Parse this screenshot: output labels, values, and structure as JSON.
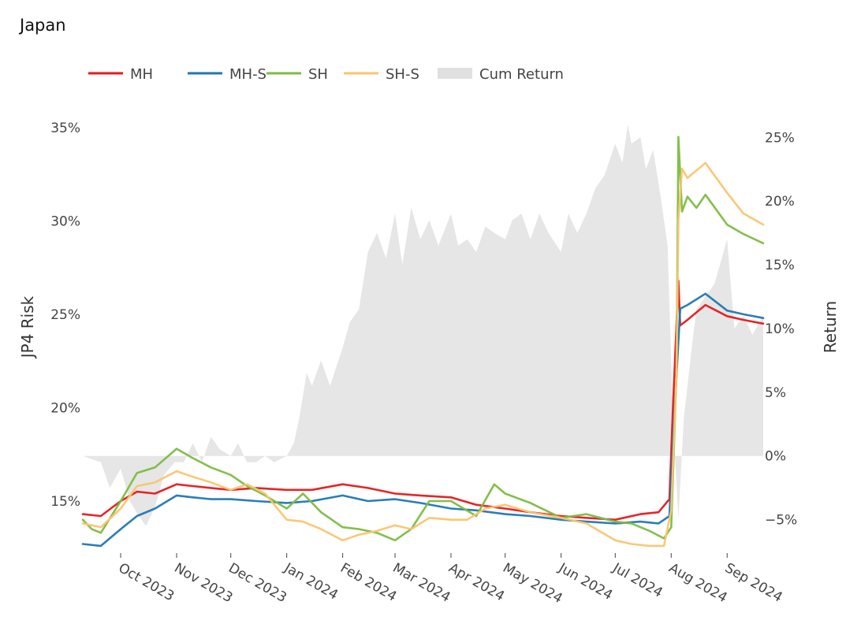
{
  "page": {
    "title": "Japan"
  },
  "chart_data": {
    "type": "line",
    "title": "Japan",
    "xlabel": "",
    "ylabel": "JP4 Risk",
    "y2label": "Return",
    "ylim": [
      12.3,
      35.5
    ],
    "y2lim": [
      -7.5,
      26.5
    ],
    "y_ticks": [
      "15%",
      "20%",
      "25%",
      "30%",
      "35%"
    ],
    "y_tick_values": [
      15,
      20,
      25,
      30,
      35
    ],
    "y2_ticks": [
      "−5%",
      "0%",
      "5%",
      "10%",
      "15%",
      "20%",
      "25%"
    ],
    "y2_tick_values": [
      -5,
      0,
      5,
      10,
      15,
      20,
      25
    ],
    "x_ticks": [
      "Oct 2023",
      "Nov 2023",
      "Dec 2023",
      "Jan 2024",
      "Feb 2024",
      "Mar 2024",
      "Apr 2024",
      "May 2024",
      "Jun 2024",
      "Jul 2024",
      "Aug 2024",
      "Sep 2024"
    ],
    "x_tick_dates": [
      "2023-10-01",
      "2023-11-01",
      "2023-12-01",
      "2024-01-01",
      "2024-02-01",
      "2024-03-01",
      "2024-04-01",
      "2024-05-01",
      "2024-06-01",
      "2024-07-01",
      "2024-08-01",
      "2024-09-01"
    ],
    "xlim": [
      "2023-09-10",
      "2024-09-21"
    ],
    "grid": false,
    "legend_position": "top-left",
    "series": [
      {
        "name": "MH",
        "color": "#e41a1c",
        "axis": "left",
        "x": [
          "2023-09-10",
          "2023-09-20",
          "2023-10-01",
          "2023-10-10",
          "2023-10-20",
          "2023-11-01",
          "2023-11-10",
          "2023-11-20",
          "2023-12-01",
          "2023-12-15",
          "2024-01-01",
          "2024-01-15",
          "2024-02-01",
          "2024-02-15",
          "2024-03-01",
          "2024-03-15",
          "2024-04-01",
          "2024-04-15",
          "2024-05-01",
          "2024-05-15",
          "2024-06-01",
          "2024-06-15",
          "2024-07-01",
          "2024-07-15",
          "2024-07-25",
          "2024-07-31",
          "2024-08-02",
          "2024-08-05",
          "2024-08-06",
          "2024-08-10",
          "2024-08-20",
          "2024-09-01",
          "2024-09-10",
          "2024-09-21"
        ],
        "y": [
          14.3,
          14.2,
          15.0,
          15.5,
          15.4,
          15.9,
          15.8,
          15.7,
          15.6,
          15.7,
          15.6,
          15.6,
          15.9,
          15.7,
          15.4,
          15.3,
          15.2,
          14.8,
          14.6,
          14.4,
          14.2,
          14.1,
          14.0,
          14.3,
          14.4,
          15.1,
          20.0,
          26.8,
          24.4,
          24.7,
          25.5,
          24.9,
          24.7,
          24.5
        ]
      },
      {
        "name": "MH-S",
        "color": "#1f77b4",
        "axis": "left",
        "x": [
          "2023-09-10",
          "2023-09-20",
          "2023-10-01",
          "2023-10-10",
          "2023-10-20",
          "2023-11-01",
          "2023-11-10",
          "2023-11-20",
          "2023-12-01",
          "2023-12-15",
          "2024-01-01",
          "2024-01-15",
          "2024-02-01",
          "2024-02-15",
          "2024-03-01",
          "2024-03-15",
          "2024-04-01",
          "2024-04-15",
          "2024-05-01",
          "2024-05-15",
          "2024-06-01",
          "2024-06-15",
          "2024-07-01",
          "2024-07-15",
          "2024-07-25",
          "2024-07-31",
          "2024-08-03",
          "2024-08-06",
          "2024-08-10",
          "2024-08-20",
          "2024-09-01",
          "2024-09-10",
          "2024-09-21"
        ],
        "y": [
          12.7,
          12.6,
          13.5,
          14.2,
          14.6,
          15.3,
          15.2,
          15.1,
          15.1,
          15.0,
          14.9,
          15.0,
          15.3,
          15.0,
          15.1,
          14.9,
          14.6,
          14.5,
          14.3,
          14.2,
          14.0,
          13.9,
          13.8,
          13.9,
          13.8,
          14.2,
          20.0,
          25.3,
          25.5,
          26.1,
          25.2,
          25.0,
          24.8
        ]
      },
      {
        "name": "SH",
        "color": "#7cbc42",
        "axis": "left",
        "x": [
          "2023-09-10",
          "2023-09-15",
          "2023-09-20",
          "2023-10-01",
          "2023-10-10",
          "2023-10-20",
          "2023-11-01",
          "2023-11-10",
          "2023-11-20",
          "2023-12-01",
          "2023-12-10",
          "2023-12-20",
          "2024-01-01",
          "2024-01-10",
          "2024-01-20",
          "2024-02-01",
          "2024-02-10",
          "2024-02-20",
          "2024-03-01",
          "2024-03-10",
          "2024-03-20",
          "2024-04-01",
          "2024-04-15",
          "2024-04-25",
          "2024-05-01",
          "2024-05-15",
          "2024-06-01",
          "2024-06-15",
          "2024-07-01",
          "2024-07-10",
          "2024-07-20",
          "2024-07-28",
          "2024-08-01",
          "2024-08-04",
          "2024-08-05",
          "2024-08-07",
          "2024-08-10",
          "2024-08-15",
          "2024-08-20",
          "2024-09-01",
          "2024-09-10",
          "2024-09-21"
        ],
        "y": [
          14.0,
          13.5,
          13.3,
          15.0,
          16.5,
          16.8,
          17.8,
          17.3,
          16.8,
          16.4,
          15.8,
          15.3,
          14.6,
          15.4,
          14.4,
          13.6,
          13.5,
          13.3,
          12.9,
          13.5,
          15.0,
          15.0,
          14.2,
          15.9,
          15.4,
          14.9,
          14.1,
          14.3,
          13.9,
          13.8,
          13.4,
          13.0,
          13.6,
          22.0,
          34.5,
          30.5,
          31.3,
          30.7,
          31.4,
          29.8,
          29.3,
          28.8
        ]
      },
      {
        "name": "SH-S",
        "color": "#f9c56f",
        "axis": "left",
        "x": [
          "2023-09-10",
          "2023-09-20",
          "2023-10-01",
          "2023-10-10",
          "2023-10-20",
          "2023-11-01",
          "2023-11-10",
          "2023-11-20",
          "2023-12-01",
          "2023-12-10",
          "2023-12-20",
          "2024-01-01",
          "2024-01-10",
          "2024-01-20",
          "2024-02-01",
          "2024-02-10",
          "2024-02-20",
          "2024-03-01",
          "2024-03-10",
          "2024-03-20",
          "2024-04-01",
          "2024-04-10",
          "2024-04-20",
          "2024-05-01",
          "2024-05-15",
          "2024-06-01",
          "2024-06-15",
          "2024-07-01",
          "2024-07-10",
          "2024-07-20",
          "2024-07-28",
          "2024-08-01",
          "2024-08-04",
          "2024-08-05",
          "2024-08-07",
          "2024-08-10",
          "2024-08-20",
          "2024-09-01",
          "2024-09-10",
          "2024-09-21"
        ],
        "y": [
          13.8,
          13.6,
          14.6,
          15.8,
          16.0,
          16.6,
          16.3,
          16.0,
          15.6,
          15.9,
          15.4,
          14.0,
          13.9,
          13.5,
          12.9,
          13.2,
          13.4,
          13.7,
          13.5,
          14.1,
          14.0,
          14.0,
          14.6,
          14.8,
          14.4,
          14.1,
          13.8,
          12.9,
          12.7,
          12.6,
          12.6,
          14.5,
          22.0,
          30.0,
          32.8,
          32.3,
          33.1,
          31.5,
          30.4,
          29.8
        ]
      }
    ],
    "area": {
      "name": "Cum Return",
      "color": "#e6e6e6",
      "axis": "right",
      "x": [
        "2023-09-10",
        "2023-09-20",
        "2023-09-25",
        "2023-10-01",
        "2023-10-06",
        "2023-10-10",
        "2023-10-15",
        "2023-10-20",
        "2023-10-25",
        "2023-10-31",
        "2023-11-05",
        "2023-11-10",
        "2023-11-15",
        "2023-11-20",
        "2023-11-25",
        "2023-12-01",
        "2023-12-05",
        "2023-12-10",
        "2023-12-15",
        "2023-12-20",
        "2023-12-25",
        "2024-01-01",
        "2024-01-05",
        "2024-01-08",
        "2024-01-12",
        "2024-01-15",
        "2024-01-20",
        "2024-01-25",
        "2024-02-01",
        "2024-02-05",
        "2024-02-10",
        "2024-02-15",
        "2024-02-20",
        "2024-02-25",
        "2024-03-01",
        "2024-03-05",
        "2024-03-10",
        "2024-03-15",
        "2024-03-20",
        "2024-03-25",
        "2024-04-01",
        "2024-04-05",
        "2024-04-10",
        "2024-04-15",
        "2024-04-20",
        "2024-04-25",
        "2024-05-01",
        "2024-05-05",
        "2024-05-10",
        "2024-05-15",
        "2024-05-20",
        "2024-05-25",
        "2024-06-01",
        "2024-06-05",
        "2024-06-10",
        "2024-06-15",
        "2024-06-20",
        "2024-06-25",
        "2024-07-01",
        "2024-07-05",
        "2024-07-08",
        "2024-07-10",
        "2024-07-15",
        "2024-07-18",
        "2024-07-22",
        "2024-07-26",
        "2024-07-30",
        "2024-08-02",
        "2024-08-05",
        "2024-08-08",
        "2024-08-12",
        "2024-08-15",
        "2024-08-20",
        "2024-08-25",
        "2024-09-01",
        "2024-09-05",
        "2024-09-10",
        "2024-09-15",
        "2024-09-21"
      ],
      "y": [
        0.0,
        -0.5,
        -2.5,
        -1.0,
        -3.5,
        -4.5,
        -5.5,
        -4.0,
        -1.5,
        -0.5,
        -0.5,
        1.0,
        -0.5,
        1.5,
        0.5,
        0.0,
        1.0,
        -0.5,
        -0.5,
        0.0,
        -0.5,
        0.0,
        1.0,
        3.0,
        6.5,
        5.5,
        7.5,
        5.5,
        8.5,
        10.5,
        11.5,
        16.0,
        17.5,
        15.5,
        19.0,
        15.0,
        19.5,
        17.0,
        18.5,
        16.5,
        19.0,
        16.5,
        17.0,
        16.0,
        18.0,
        17.5,
        17.0,
        18.5,
        19.0,
        17.0,
        19.0,
        17.5,
        16.0,
        19.0,
        17.5,
        19.0,
        21.0,
        22.0,
        24.5,
        23.0,
        26.0,
        24.5,
        25.0,
        22.5,
        24.0,
        20.5,
        16.5,
        3.0,
        -5.0,
        3.0,
        8.0,
        11.5,
        12.5,
        13.5,
        17.0,
        10.0,
        11.0,
        9.5,
        11.0
      ]
    }
  }
}
